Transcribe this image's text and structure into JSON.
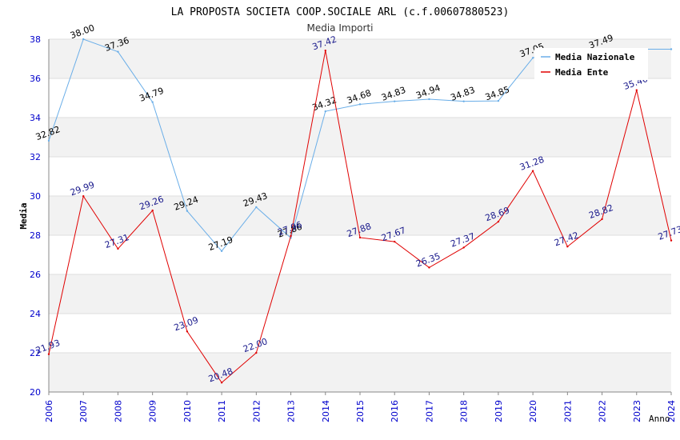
{
  "chart_data": {
    "type": "line",
    "title": "LA PROPOSTA SOCIETA COOP.SOCIALE ARL (c.f.00607880523)",
    "subtitle": "Media Importi",
    "xlabel": "Anno",
    "ylabel": "Media",
    "ylim": [
      20,
      38
    ],
    "yticks": [
      "20",
      "22",
      "24",
      "26",
      "28",
      "30",
      "32",
      "34",
      "36",
      "38"
    ],
    "categories": [
      "2006",
      "2007",
      "2008",
      "2009",
      "2010",
      "2011",
      "2012",
      "2013",
      "2014",
      "2015",
      "2016",
      "2017",
      "2018",
      "2019",
      "2020",
      "2021",
      "2022",
      "2023",
      "2024"
    ],
    "legend_position": "top-right",
    "series": [
      {
        "name": "Media Nazionale",
        "color": "#6aaee8",
        "label_color": "#000000",
        "values": [
          32.82,
          38.0,
          37.36,
          34.79,
          29.24,
          27.19,
          29.43,
          27.86,
          34.32,
          34.68,
          34.83,
          34.94,
          34.83,
          34.85,
          37.05,
          37.49,
          37.49,
          37.49,
          37.49
        ],
        "labels": [
          "32.82",
          "38.00",
          "37.36",
          "34.79",
          "29.24",
          "27.19",
          "29.43",
          "27.86",
          "34.32",
          "34.68",
          "34.83",
          "34.94",
          "34.83",
          "34.85",
          "37.05",
          "",
          "37.49",
          "",
          ""
        ]
      },
      {
        "name": "Media Ente",
        "color": "#e00000",
        "label_color": "#1a1a8c",
        "values": [
          21.93,
          29.99,
          27.31,
          29.26,
          23.09,
          20.48,
          22.0,
          27.96,
          37.42,
          27.88,
          27.67,
          26.35,
          27.37,
          28.69,
          31.28,
          27.42,
          28.82,
          35.4,
          27.73
        ],
        "labels": [
          "21.93",
          "29.99",
          "27.31",
          "29.26",
          "23.09",
          "20.48",
          "22.00",
          "27.96",
          "37.42",
          "27.88",
          "27.67",
          "26.35",
          "27.37",
          "28.69",
          "31.28",
          "27.42",
          "28.82",
          "35.40",
          "27.73"
        ]
      }
    ],
    "colors": {
      "band": "#f2f2f2",
      "grid": "#dddddd",
      "axis": "#888888",
      "tick_label": "#0000cc",
      "title": "#000000",
      "subtitle": "#333333"
    }
  }
}
